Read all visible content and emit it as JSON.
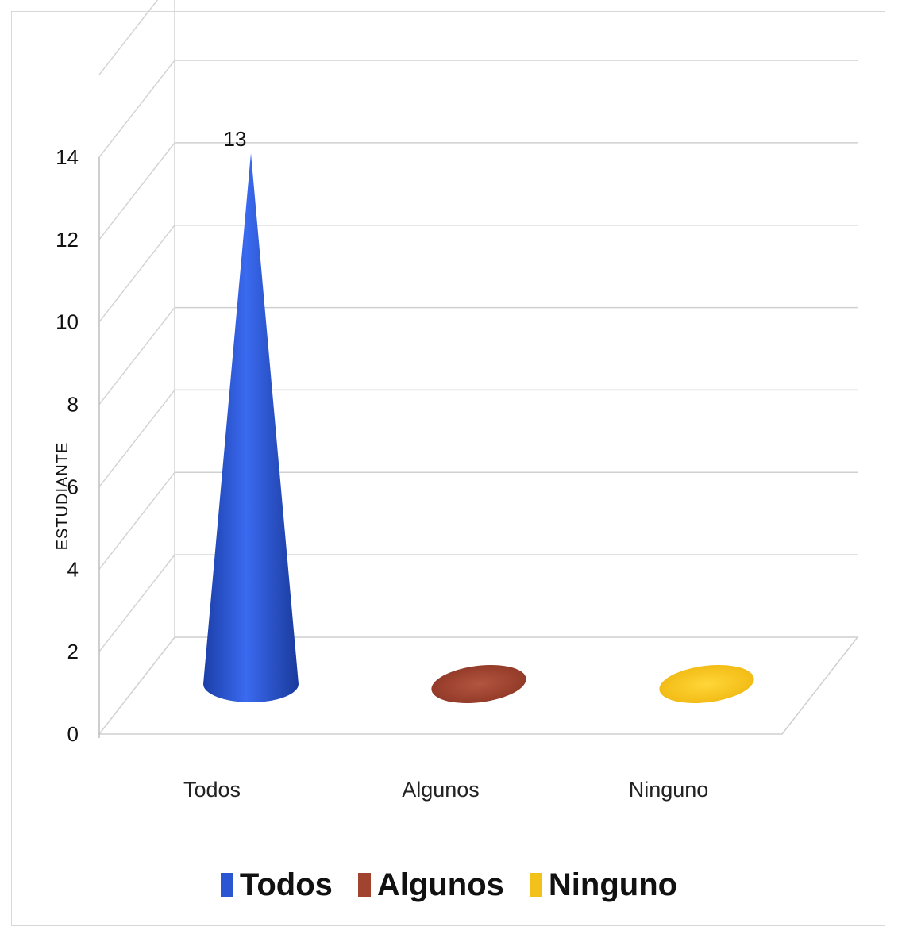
{
  "chart_data": {
    "type": "bar",
    "style": "3d-cone",
    "categories": [
      "Todos",
      "Algunos",
      "Ninguno"
    ],
    "values": [
      13,
      0,
      0
    ],
    "data_labels": [
      "13",
      "",
      ""
    ],
    "ylabel": "ESTUDIANTE",
    "xlabel": "",
    "ylim": [
      0,
      14
    ],
    "yticks": [
      0,
      2,
      4,
      6,
      8,
      10,
      12,
      14
    ],
    "grid": true,
    "legend": "bottom",
    "series": [
      {
        "name": "Todos",
        "color": "#2a56d4"
      },
      {
        "name": "Algunos",
        "color": "#a0432f"
      },
      {
        "name": "Ninguno",
        "color": "#f2c21a"
      }
    ]
  }
}
